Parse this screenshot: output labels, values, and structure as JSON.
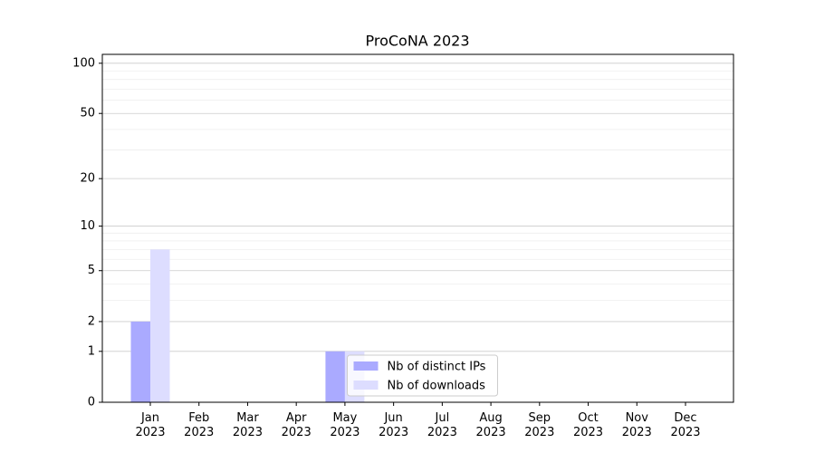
{
  "chart_data": {
    "type": "bar",
    "title": "ProCoNA 2023",
    "categories": [
      "Jan 2023",
      "Feb 2023",
      "Mar 2023",
      "Apr 2023",
      "May 2023",
      "Jun 2023",
      "Jul 2023",
      "Aug 2023",
      "Sep 2023",
      "Oct 2023",
      "Nov 2023",
      "Dec 2023"
    ],
    "series": [
      {
        "name": "Nb of distinct IPs",
        "color": "#aaaaff",
        "values": [
          2,
          0,
          0,
          0,
          1,
          0,
          0,
          0,
          0,
          0,
          0,
          0
        ]
      },
      {
        "name": "Nb of downloads",
        "color": "#ddddff",
        "values": [
          7,
          0,
          0,
          0,
          1,
          0,
          0,
          0,
          0,
          0,
          0,
          0
        ]
      }
    ],
    "yscale": "log1p",
    "ylim": [
      0,
      113
    ],
    "yticks": [
      0,
      1,
      2,
      5,
      10,
      20,
      50,
      100
    ],
    "minor_yticks": [
      3,
      4,
      6,
      7,
      8,
      9,
      30,
      40,
      60,
      70,
      80,
      90
    ],
    "grid": true,
    "legend": "lower center"
  }
}
